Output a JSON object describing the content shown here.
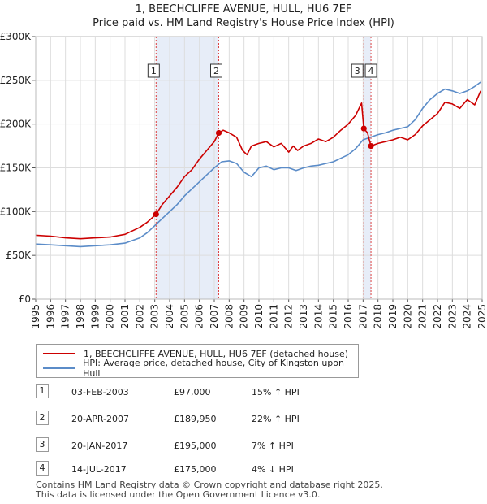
{
  "title": {
    "line1": "1, BEECHCLIFFE AVENUE, HULL, HU6 7EF",
    "line2": "Price paid vs. HM Land Registry's House Price Index (HPI)"
  },
  "legend": {
    "property": "1, BEECHCLIFFE AVENUE, HULL, HU6 7EF (detached house)",
    "hpi": "HPI: Average price, detached house, City of Kingston upon Hull"
  },
  "colors": {
    "property": "#cc0000",
    "hpi": "#5b8cc8",
    "shade": "#dde6f5",
    "vline": "#dd4444",
    "grid": "#dddddd"
  },
  "sales": [
    {
      "num": "1",
      "date": "03-FEB-2003",
      "price": "£97,000",
      "hpi": "15% ↑ HPI"
    },
    {
      "num": "2",
      "date": "20-APR-2007",
      "price": "£189,950",
      "hpi": "22% ↑ HPI"
    },
    {
      "num": "3",
      "date": "20-JAN-2017",
      "price": "£195,000",
      "hpi": "7% ↑ HPI"
    },
    {
      "num": "4",
      "date": "14-JUL-2017",
      "price": "£175,000",
      "hpi": "4% ↓ HPI"
    }
  ],
  "footer": {
    "line1": "Contains HM Land Registry data © Crown copyright and database right 2025.",
    "line2": "This data is licensed under the Open Government Licence v3.0."
  },
  "chart_data": {
    "type": "line",
    "title": "1, BEECHCLIFFE AVENUE, HULL, HU6 7EF",
    "subtitle": "Price paid vs. HM Land Registry's House Price Index (HPI)",
    "xlabel": "",
    "ylabel": "",
    "xlim": [
      1995,
      2025
    ],
    "ylim": [
      0,
      300000
    ],
    "grid": true,
    "x_ticks": [
      "1995",
      "1996",
      "1997",
      "1998",
      "1999",
      "2000",
      "2001",
      "2002",
      "2003",
      "2004",
      "2005",
      "2006",
      "2007",
      "2008",
      "2009",
      "2010",
      "2011",
      "2012",
      "2013",
      "2014",
      "2015",
      "2016",
      "2017",
      "2018",
      "2019",
      "2020",
      "2021",
      "2022",
      "2023",
      "2024",
      "2025"
    ],
    "y_ticks": [
      {
        "value": 0,
        "label": "£0"
      },
      {
        "value": 50000,
        "label": "£50K"
      },
      {
        "value": 100000,
        "label": "£100K"
      },
      {
        "value": 150000,
        "label": "£150K"
      },
      {
        "value": 200000,
        "label": "£200K"
      },
      {
        "value": 250000,
        "label": "£250K"
      },
      {
        "value": 300000,
        "label": "£300K"
      }
    ],
    "shaded_ranges": [
      [
        2003.09,
        2007.3
      ],
      [
        2017.05,
        2017.53
      ]
    ],
    "markers": [
      {
        "label": "1",
        "x": 2003.09,
        "price": 97000
      },
      {
        "label": "2",
        "x": 2007.3,
        "price": 189950
      },
      {
        "label": "3",
        "x": 2017.05,
        "price": 195000
      },
      {
        "label": "4",
        "x": 2017.53,
        "price": 175000
      }
    ],
    "series": [
      {
        "name": "1, BEECHCLIFFE AVENUE, HULL, HU6 7EF (detached house)",
        "x": [
          1995,
          1996,
          1997,
          1998,
          1999,
          2000,
          2001,
          2002,
          2002.5,
          2003.09,
          2003.5,
          2004,
          2004.5,
          2005,
          2005.5,
          2006,
          2006.5,
          2007,
          2007.3,
          2007.6,
          2008,
          2008.5,
          2008.9,
          2009.2,
          2009.5,
          2010,
          2010.5,
          2011,
          2011.5,
          2012,
          2012.3,
          2012.6,
          2013,
          2013.5,
          2014,
          2014.5,
          2015,
          2015.5,
          2016,
          2016.5,
          2016.9,
          2017.05,
          2017.3,
          2017.53,
          2018,
          2018.5,
          2019,
          2019.5,
          2020,
          2020.5,
          2021,
          2021.5,
          2022,
          2022.5,
          2023,
          2023.5,
          2024,
          2024.5,
          2024.9
        ],
        "values": [
          73000,
          72000,
          70000,
          69000,
          70000,
          71000,
          74000,
          82000,
          88000,
          97000,
          108000,
          118000,
          128000,
          140000,
          148000,
          160000,
          170000,
          180000,
          189950,
          193000,
          190000,
          185000,
          170000,
          165000,
          175000,
          178000,
          180000,
          174000,
          178000,
          168000,
          175000,
          170000,
          175000,
          178000,
          183000,
          180000,
          185000,
          193000,
          200000,
          210000,
          224000,
          195000,
          190000,
          175000,
          178000,
          180000,
          182000,
          185000,
          182000,
          188000,
          198000,
          205000,
          212000,
          225000,
          223000,
          218000,
          228000,
          222000,
          238000
        ]
      },
      {
        "name": "HPI: Average price, detached house, City of Kingston upon Hull",
        "x": [
          1995,
          1996,
          1997,
          1998,
          1999,
          2000,
          2001,
          2002,
          2002.5,
          2003,
          2003.5,
          2004,
          2004.5,
          2005,
          2005.5,
          2006,
          2006.5,
          2007,
          2007.5,
          2008,
          2008.5,
          2009,
          2009.5,
          2010,
          2010.5,
          2011,
          2011.5,
          2012,
          2012.5,
          2013,
          2013.5,
          2014,
          2014.5,
          2015,
          2015.5,
          2016,
          2016.5,
          2017,
          2017.5,
          2018,
          2018.5,
          2019,
          2019.5,
          2020,
          2020.5,
          2021,
          2021.5,
          2022,
          2022.5,
          2023,
          2023.5,
          2024,
          2024.5,
          2024.9
        ],
        "values": [
          63000,
          62000,
          61000,
          60000,
          61000,
          62000,
          64000,
          70000,
          76000,
          84000,
          92000,
          100000,
          108000,
          118000,
          126000,
          134000,
          142000,
          150000,
          157000,
          158000,
          155000,
          145000,
          140000,
          150000,
          152000,
          148000,
          150000,
          150000,
          147000,
          150000,
          152000,
          153000,
          155000,
          157000,
          161000,
          165000,
          172000,
          182000,
          185000,
          188000,
          190000,
          193000,
          195000,
          197000,
          205000,
          218000,
          228000,
          235000,
          240000,
          238000,
          235000,
          238000,
          243000,
          248000
        ]
      }
    ]
  }
}
